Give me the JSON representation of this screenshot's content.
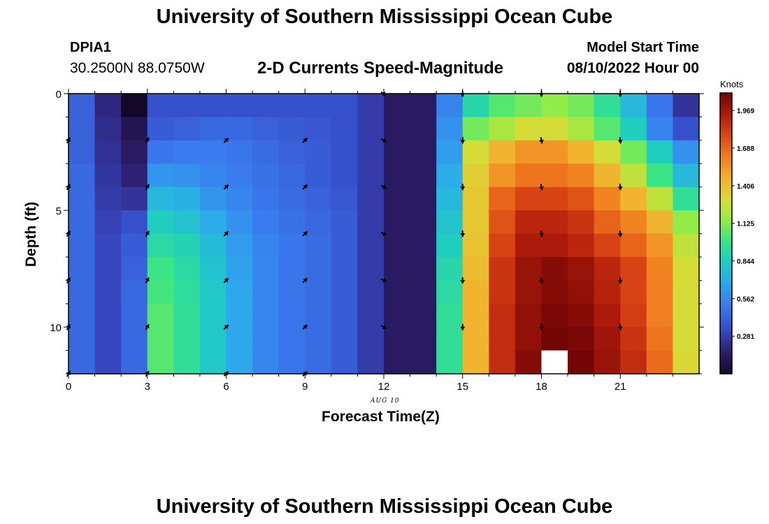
{
  "header": {
    "main_title": "University of Southern Mississippi Ocean Cube",
    "station": "DPIA1",
    "coordinates": "30.2500N  88.0750W",
    "subtitle": "2-D Currents Speed-Magnitude",
    "start_label": "Model Start Time",
    "start_value": "08/10/2022 Hour 00"
  },
  "footer": {
    "bottom_title": "University of Southern Mississippi Ocean Cube"
  },
  "chart_data": {
    "type": "heatmap",
    "title": "2-D Currents Speed-Magnitude",
    "xlabel": "Forecast Time(Z)",
    "ylabel": "Depth (ft)",
    "date_label": "AUG 10",
    "x_range": [
      0,
      23
    ],
    "y_range": [
      0,
      12
    ],
    "x_ticks": [
      0,
      3,
      6,
      9,
      12,
      15,
      18,
      21
    ],
    "y_ticks": [
      0,
      5,
      10
    ],
    "colorbar": {
      "title": "Knots",
      "ticks": [
        0.281,
        0.562,
        0.844,
        1.125,
        1.406,
        1.688,
        1.969
      ],
      "tick_labels": [
        "0.281",
        "0.562",
        "0.844",
        "1.125",
        "1.406",
        "1.688",
        "1.969"
      ],
      "range": [
        0,
        2.1
      ]
    },
    "column_hours": [
      0,
      1,
      2,
      3,
      4,
      5,
      6,
      7,
      8,
      9,
      10,
      11,
      12,
      13,
      14,
      15,
      16,
      17,
      18,
      19,
      20,
      21,
      22,
      23
    ],
    "row_depths": [
      0,
      1,
      2,
      3,
      4,
      5,
      6,
      7,
      8,
      9,
      10,
      11
    ],
    "speed_knots": [
      [
        0.42,
        0.2,
        0.0,
        0.36,
        0.36,
        0.36,
        0.36,
        0.36,
        0.36,
        0.36,
        0.36,
        0.28,
        0.14,
        0.14,
        0.55,
        0.9,
        1.05,
        1.1,
        1.15,
        1.1,
        0.95,
        0.75,
        0.5,
        0.25
      ],
      [
        0.42,
        0.22,
        0.1,
        0.4,
        0.42,
        0.45,
        0.45,
        0.42,
        0.4,
        0.38,
        0.36,
        0.28,
        0.14,
        0.14,
        0.6,
        1.1,
        1.2,
        1.3,
        1.3,
        1.2,
        1.05,
        0.85,
        0.55,
        0.35
      ],
      [
        0.42,
        0.24,
        0.14,
        0.5,
        0.52,
        0.52,
        0.5,
        0.46,
        0.42,
        0.4,
        0.36,
        0.28,
        0.14,
        0.14,
        0.65,
        1.3,
        1.45,
        1.55,
        1.55,
        1.45,
        1.3,
        1.1,
        0.85,
        0.6
      ],
      [
        0.45,
        0.26,
        0.18,
        0.62,
        0.6,
        0.56,
        0.52,
        0.48,
        0.44,
        0.4,
        0.36,
        0.28,
        0.14,
        0.14,
        0.7,
        1.35,
        1.55,
        1.65,
        1.65,
        1.6,
        1.45,
        1.25,
        1.0,
        0.75
      ],
      [
        0.45,
        0.28,
        0.25,
        0.75,
        0.72,
        0.62,
        0.56,
        0.5,
        0.46,
        0.42,
        0.38,
        0.28,
        0.14,
        0.14,
        0.75,
        1.38,
        1.7,
        1.8,
        1.8,
        1.75,
        1.6,
        1.45,
        1.25,
        0.95
      ],
      [
        0.45,
        0.3,
        0.35,
        0.85,
        0.8,
        0.7,
        0.6,
        0.52,
        0.48,
        0.44,
        0.4,
        0.28,
        0.14,
        0.14,
        0.8,
        1.38,
        1.75,
        1.9,
        1.9,
        1.85,
        1.7,
        1.6,
        1.45,
        1.15
      ],
      [
        0.45,
        0.32,
        0.4,
        0.92,
        0.88,
        0.76,
        0.64,
        0.55,
        0.5,
        0.46,
        0.4,
        0.28,
        0.14,
        0.14,
        0.85,
        1.4,
        1.8,
        1.95,
        1.95,
        1.9,
        1.8,
        1.7,
        1.55,
        1.25
      ],
      [
        0.45,
        0.32,
        0.42,
        1.0,
        0.92,
        0.8,
        0.66,
        0.56,
        0.5,
        0.46,
        0.4,
        0.28,
        0.14,
        0.14,
        0.9,
        1.42,
        1.85,
        2.0,
        2.05,
        2.0,
        1.9,
        1.8,
        1.6,
        1.3
      ],
      [
        0.45,
        0.32,
        0.44,
        1.02,
        0.94,
        0.82,
        0.68,
        0.56,
        0.5,
        0.46,
        0.4,
        0.28,
        0.14,
        0.14,
        0.92,
        1.45,
        1.85,
        2.0,
        2.05,
        2.02,
        1.92,
        1.8,
        1.62,
        1.3
      ],
      [
        0.45,
        0.32,
        0.45,
        1.05,
        0.95,
        0.82,
        0.68,
        0.56,
        0.5,
        0.46,
        0.4,
        0.28,
        0.14,
        0.14,
        0.95,
        1.45,
        1.88,
        2.02,
        2.08,
        2.05,
        1.95,
        1.82,
        1.62,
        1.3
      ],
      [
        0.45,
        0.32,
        0.45,
        1.05,
        0.95,
        0.82,
        0.68,
        0.56,
        0.5,
        0.46,
        0.4,
        0.28,
        0.14,
        0.14,
        0.95,
        1.45,
        1.88,
        2.02,
        2.1,
        2.08,
        1.98,
        1.85,
        1.65,
        1.3
      ],
      [
        0.45,
        0.32,
        0.45,
        1.05,
        0.95,
        0.82,
        0.68,
        0.56,
        0.5,
        0.46,
        0.4,
        0.28,
        0.14,
        0.14,
        0.95,
        1.45,
        1.88,
        2.05,
        null,
        2.15,
        2.0,
        1.88,
        1.68,
        1.32
      ]
    ],
    "vectors": {
      "hours": [
        0,
        3,
        6,
        9,
        12,
        15,
        18,
        21
      ],
      "depths": [
        0,
        2,
        4,
        6,
        8,
        10,
        12
      ],
      "direction_deg": [
        [
          null,
          null,
          null,
          null,
          120,
          180,
          180,
          180
        ],
        [
          30,
          30,
          45,
          45,
          120,
          180,
          170,
          175
        ],
        [
          30,
          30,
          45,
          45,
          120,
          180,
          170,
          175
        ],
        [
          30,
          30,
          45,
          45,
          120,
          180,
          170,
          175
        ],
        [
          30,
          30,
          45,
          45,
          120,
          180,
          170,
          175
        ],
        [
          30,
          30,
          45,
          45,
          120,
          180,
          170,
          175
        ],
        [
          30,
          30,
          45,
          45,
          null,
          null,
          null,
          null
        ]
      ]
    }
  }
}
